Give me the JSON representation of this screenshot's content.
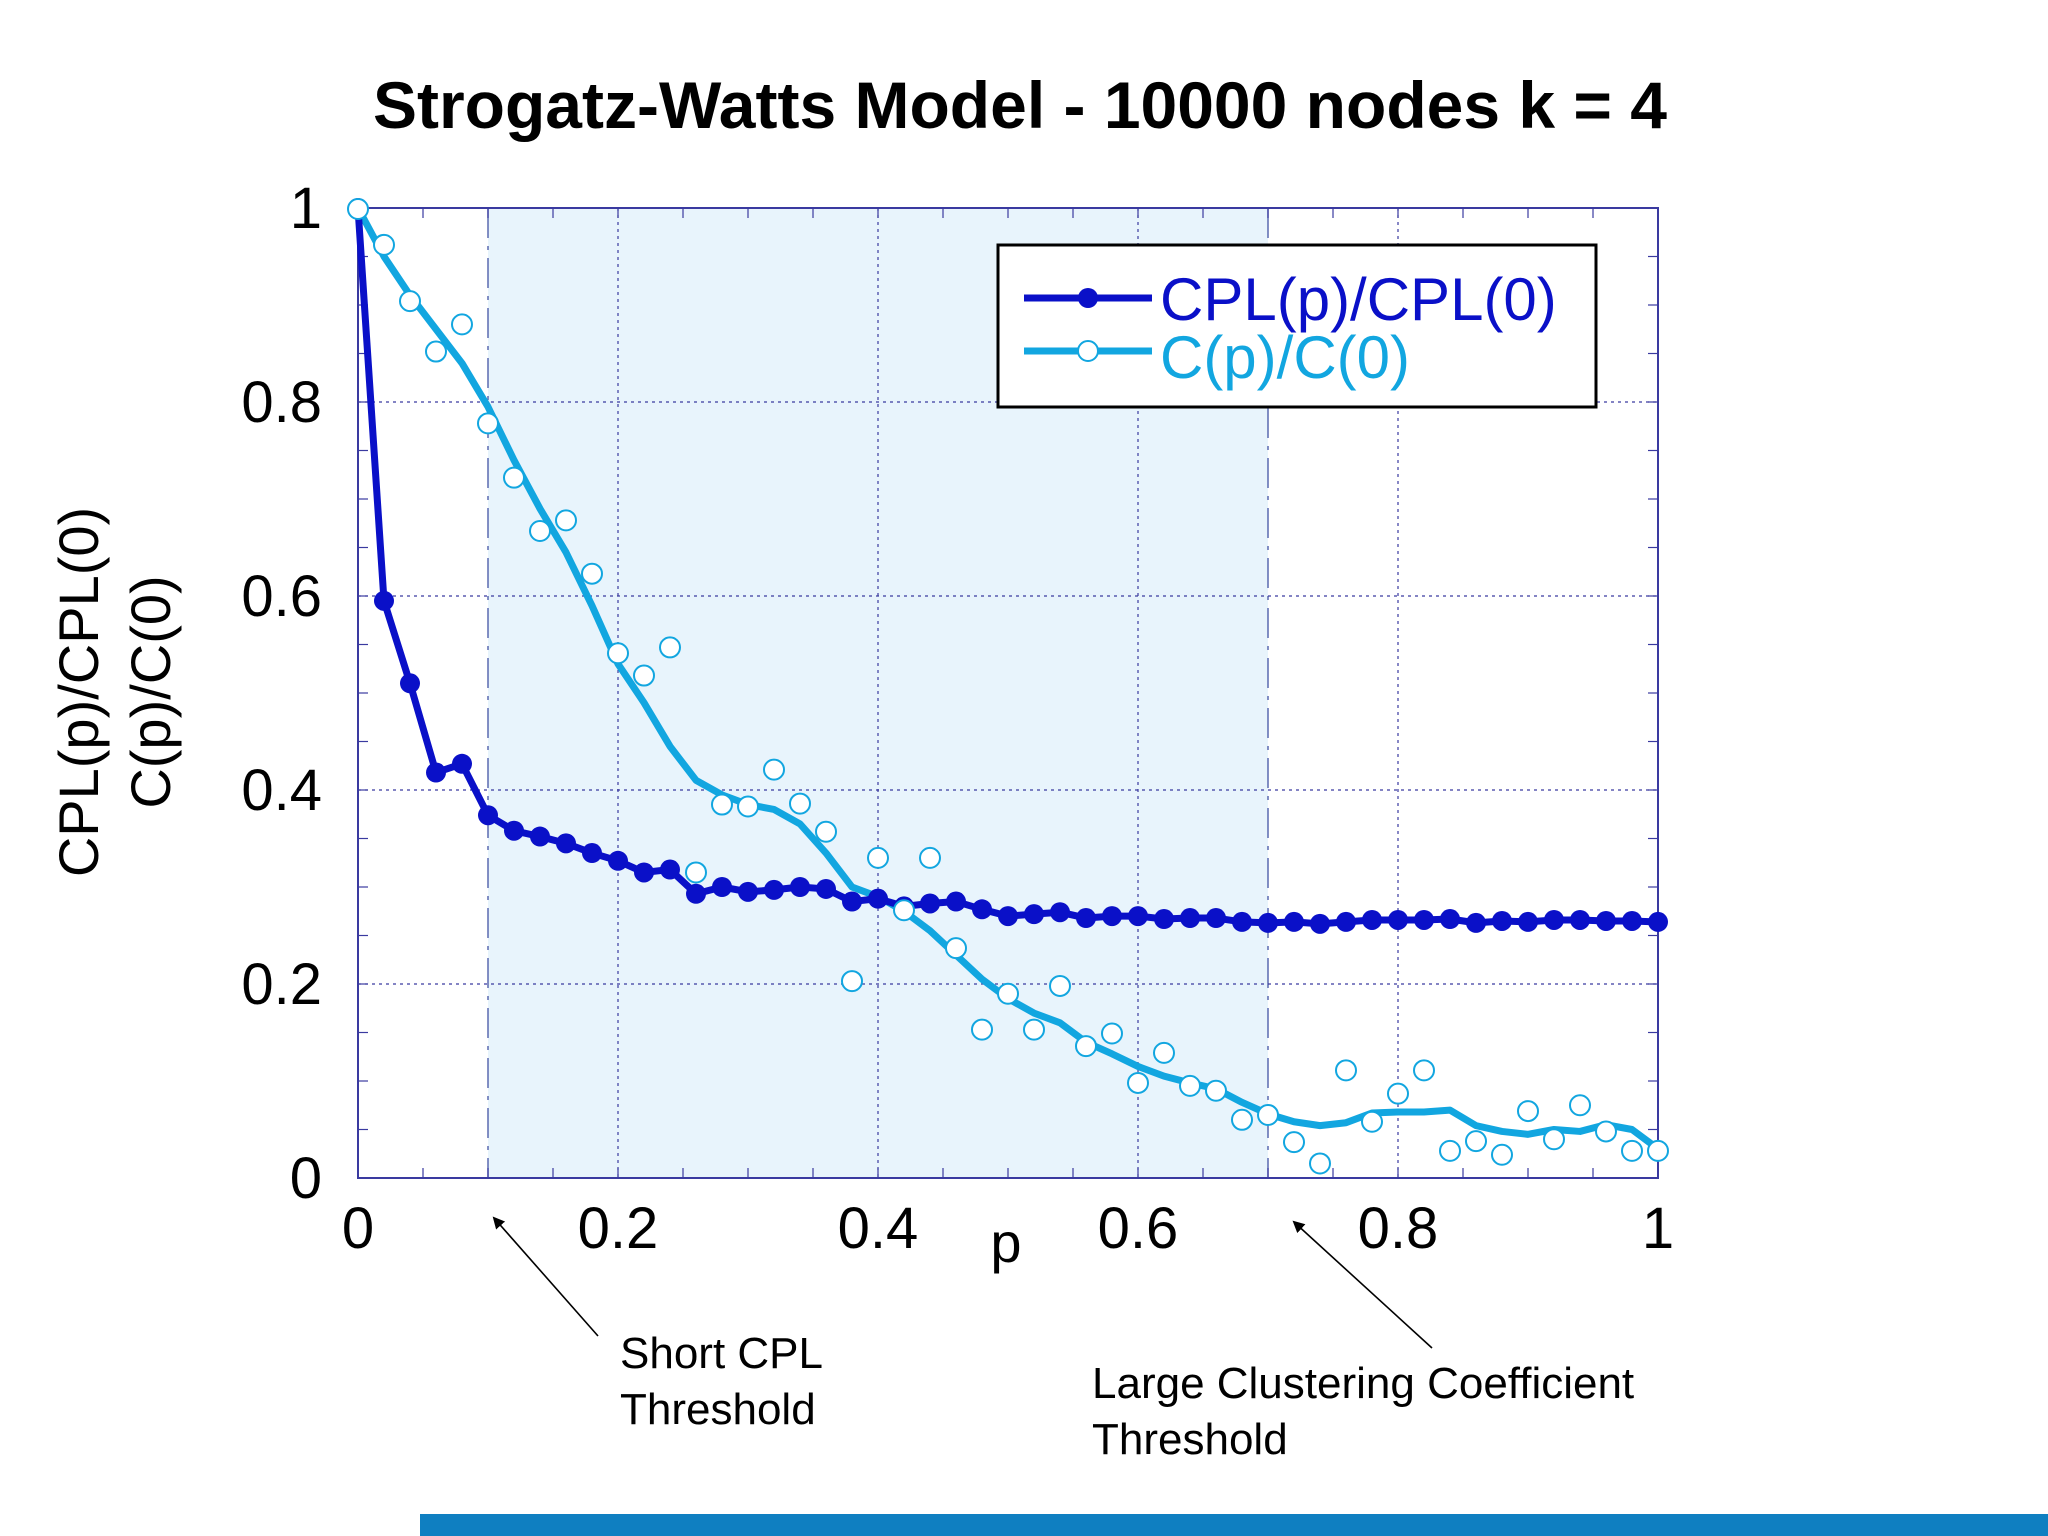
{
  "chart_data": {
    "type": "line",
    "title": "Strogatz-Watts Model - 10000 nodes k = 4",
    "xlabel": "p",
    "ylabel_lines": [
      "CPL(p)/CPL(0)",
      "C(p)/C(0)"
    ],
    "xlim": [
      0,
      1
    ],
    "ylim": [
      0,
      1
    ],
    "x_ticks": [
      "0",
      "0.2",
      "0.4",
      "0.6",
      "0.8",
      "1"
    ],
    "y_ticks": [
      "0",
      "0.2",
      "0.4",
      "0.6",
      "0.8",
      "1"
    ],
    "grid": true,
    "legend_position": "top-right",
    "shaded_region": {
      "from": 0.1,
      "to": 0.7
    },
    "colors": {
      "cpl": "#0a10c8",
      "cc": "#12a6e0",
      "shade": "#e8f4fc",
      "grid": "#3a3aa0",
      "bottom_bar": "#0f7fc1"
    },
    "series": [
      {
        "name": "CPL(p)/CPL(0)",
        "x": [
          0,
          0.02,
          0.04,
          0.06,
          0.08,
          0.1,
          0.12,
          0.14,
          0.16,
          0.18,
          0.2,
          0.22,
          0.24,
          0.26,
          0.28,
          0.3,
          0.32,
          0.34,
          0.36,
          0.38,
          0.4,
          0.42,
          0.44,
          0.46,
          0.48,
          0.5,
          0.52,
          0.54,
          0.56,
          0.58,
          0.6,
          0.62,
          0.64,
          0.66,
          0.68,
          0.7,
          0.72,
          0.74,
          0.76,
          0.78,
          0.8,
          0.82,
          0.84,
          0.86,
          0.88,
          0.9,
          0.92,
          0.94,
          0.96,
          0.98,
          1.0
        ],
        "y": [
          1.0,
          0.595,
          0.51,
          0.418,
          0.427,
          0.374,
          0.358,
          0.352,
          0.345,
          0.335,
          0.327,
          0.315,
          0.318,
          0.293,
          0.3,
          0.295,
          0.297,
          0.3,
          0.298,
          0.285,
          0.288,
          0.28,
          0.283,
          0.285,
          0.277,
          0.27,
          0.272,
          0.274,
          0.268,
          0.27,
          0.27,
          0.267,
          0.268,
          0.268,
          0.264,
          0.263,
          0.264,
          0.262,
          0.264,
          0.266,
          0.266,
          0.266,
          0.267,
          0.263,
          0.265,
          0.264,
          0.266,
          0.266,
          0.265,
          0.265,
          0.264
        ]
      },
      {
        "name": "C(p)/C(0)",
        "x": [
          0,
          0.02,
          0.04,
          0.06,
          0.08,
          0.1,
          0.12,
          0.14,
          0.16,
          0.18,
          0.2,
          0.22,
          0.24,
          0.26,
          0.28,
          0.3,
          0.32,
          0.34,
          0.36,
          0.38,
          0.4,
          0.42,
          0.44,
          0.46,
          0.48,
          0.5,
          0.52,
          0.54,
          0.56,
          0.58,
          0.6,
          0.62,
          0.64,
          0.66,
          0.68,
          0.7,
          0.72,
          0.74,
          0.76,
          0.78,
          0.8,
          0.82,
          0.84,
          0.86,
          0.88,
          0.9,
          0.92,
          0.94,
          0.96,
          0.98,
          1.0
        ],
        "y": [
          0.999,
          0.962,
          0.904,
          0.852,
          0.88,
          0.778,
          0.722,
          0.667,
          0.678,
          0.623,
          0.541,
          0.518,
          0.547,
          0.315,
          0.385,
          0.383,
          0.421,
          0.386,
          0.357,
          0.203,
          0.33,
          0.276,
          0.33,
          0.237,
          0.153,
          0.19,
          0.153,
          0.198,
          0.136,
          0.149,
          0.098,
          0.129,
          0.095,
          0.09,
          0.06,
          0.065,
          0.037,
          0.015,
          0.111,
          0.058,
          0.087,
          0.111,
          0.028,
          0.038,
          0.024,
          0.069,
          0.04,
          0.075,
          0.048,
          0.028,
          0.028
        ],
        "fit": [
          1.0,
          0.95,
          0.91,
          0.875,
          0.84,
          0.795,
          0.74,
          0.69,
          0.645,
          0.59,
          0.53,
          0.49,
          0.445,
          0.41,
          0.395,
          0.385,
          0.38,
          0.365,
          0.335,
          0.3,
          0.29,
          0.275,
          0.255,
          0.23,
          0.205,
          0.185,
          0.17,
          0.16,
          0.14,
          0.128,
          0.115,
          0.105,
          0.098,
          0.092,
          0.078,
          0.066,
          0.058,
          0.054,
          0.057,
          0.067,
          0.068,
          0.068,
          0.07,
          0.054,
          0.048,
          0.045,
          0.05,
          0.048,
          0.055,
          0.05,
          0.03
        ]
      }
    ],
    "annotations": [
      {
        "lines": [
          "Short CPL",
          "Threshold"
        ],
        "arrow_to_x": 0.1
      },
      {
        "lines": [
          "Large Clustering Coefficient",
          "Threshold"
        ],
        "arrow_to_x": 0.7
      }
    ]
  }
}
